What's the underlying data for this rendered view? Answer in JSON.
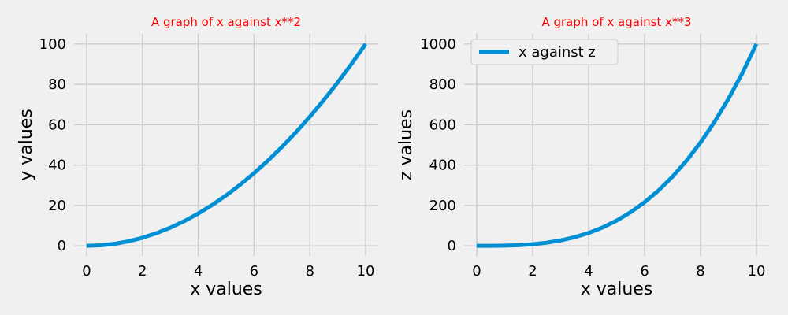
{
  "chart_data": [
    {
      "type": "line",
      "title": "A graph of x against x**2",
      "title_color": "#ff0000",
      "xlabel": "x values",
      "ylabel": "y values",
      "xlim": [
        -0.45,
        10.45
      ],
      "ylim": [
        -5,
        105
      ],
      "xticks": [
        0,
        2,
        4,
        6,
        8,
        10
      ],
      "yticks": [
        0,
        20,
        40,
        60,
        80,
        100
      ],
      "grid": true,
      "legend": null,
      "series": [
        {
          "color": "#008fd5",
          "x": [
            0,
            0.5,
            1,
            1.5,
            2,
            2.5,
            3,
            3.5,
            4,
            4.5,
            5,
            5.5,
            6,
            6.5,
            7,
            7.5,
            8,
            8.5,
            9,
            9.5,
            10
          ],
          "y": [
            0,
            0.25,
            1,
            2.25,
            4,
            6.25,
            9,
            12.25,
            16,
            20.25,
            25,
            30.25,
            36,
            42.25,
            49,
            56.25,
            64,
            72.25,
            81,
            90.25,
            100
          ]
        }
      ]
    },
    {
      "type": "line",
      "title": "A graph of x against x**3",
      "title_color": "#ff0000",
      "xlabel": "x values",
      "ylabel": "z values",
      "xlim": [
        -0.45,
        10.45
      ],
      "ylim": [
        -50,
        1050
      ],
      "xticks": [
        0,
        2,
        4,
        6,
        8,
        10
      ],
      "yticks": [
        0,
        200,
        400,
        600,
        800,
        1000
      ],
      "grid": true,
      "legend": "top-left",
      "series": [
        {
          "name": "x against z",
          "color": "#008fd5",
          "x": [
            0,
            0.5,
            1,
            1.5,
            2,
            2.5,
            3,
            3.5,
            4,
            4.5,
            5,
            5.5,
            6,
            6.5,
            7,
            7.5,
            8,
            8.5,
            9,
            9.5,
            10
          ],
          "y": [
            0,
            0.125,
            1,
            3.375,
            8,
            15.625,
            27,
            42.875,
            64,
            91.125,
            125,
            166.375,
            216,
            274.625,
            343,
            421.875,
            512,
            614.125,
            729,
            857.375,
            1000
          ]
        }
      ]
    }
  ]
}
